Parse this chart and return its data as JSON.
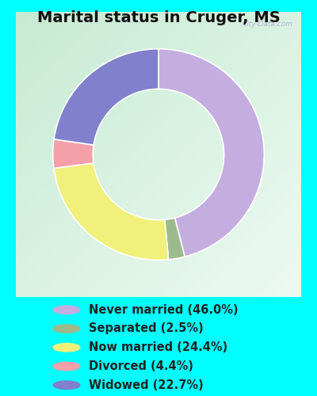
{
  "title": "Marital status in Cruger, MS",
  "title_fontsize": 14,
  "title_fontweight": "bold",
  "background_outer": "#00FFFF",
  "background_inner_tl": "#c8e8d0",
  "background_inner_br": "#e8f4ec",
  "watermark": "City-Data.com",
  "categories": [
    "Never married",
    "Separated",
    "Now married",
    "Divorced",
    "Widowed"
  ],
  "values": [
    46.0,
    2.5,
    24.4,
    4.4,
    22.7
  ],
  "colors": [
    "#c4aee0",
    "#9dba8d",
    "#f0f07a",
    "#f5a0a8",
    "#8080cc"
  ],
  "legend_labels": [
    "Never married (46.0%)",
    "Separated (2.5%)",
    "Now married (24.4%)",
    "Divorced (4.4%)",
    "Widowed (22.7%)"
  ],
  "plot_order": [
    0,
    1,
    2,
    3,
    4
  ],
  "plot_values_order": [
    46.0,
    2.5,
    24.4,
    4.4,
    22.7
  ],
  "plot_colors_order": [
    "#c4aee0",
    "#9dba8d",
    "#f0f07a",
    "#f5a0a8",
    "#8080cc"
  ],
  "legend_fontsize": 10.5,
  "donut_width": 0.38,
  "start_angle": 90,
  "counterclock": false
}
